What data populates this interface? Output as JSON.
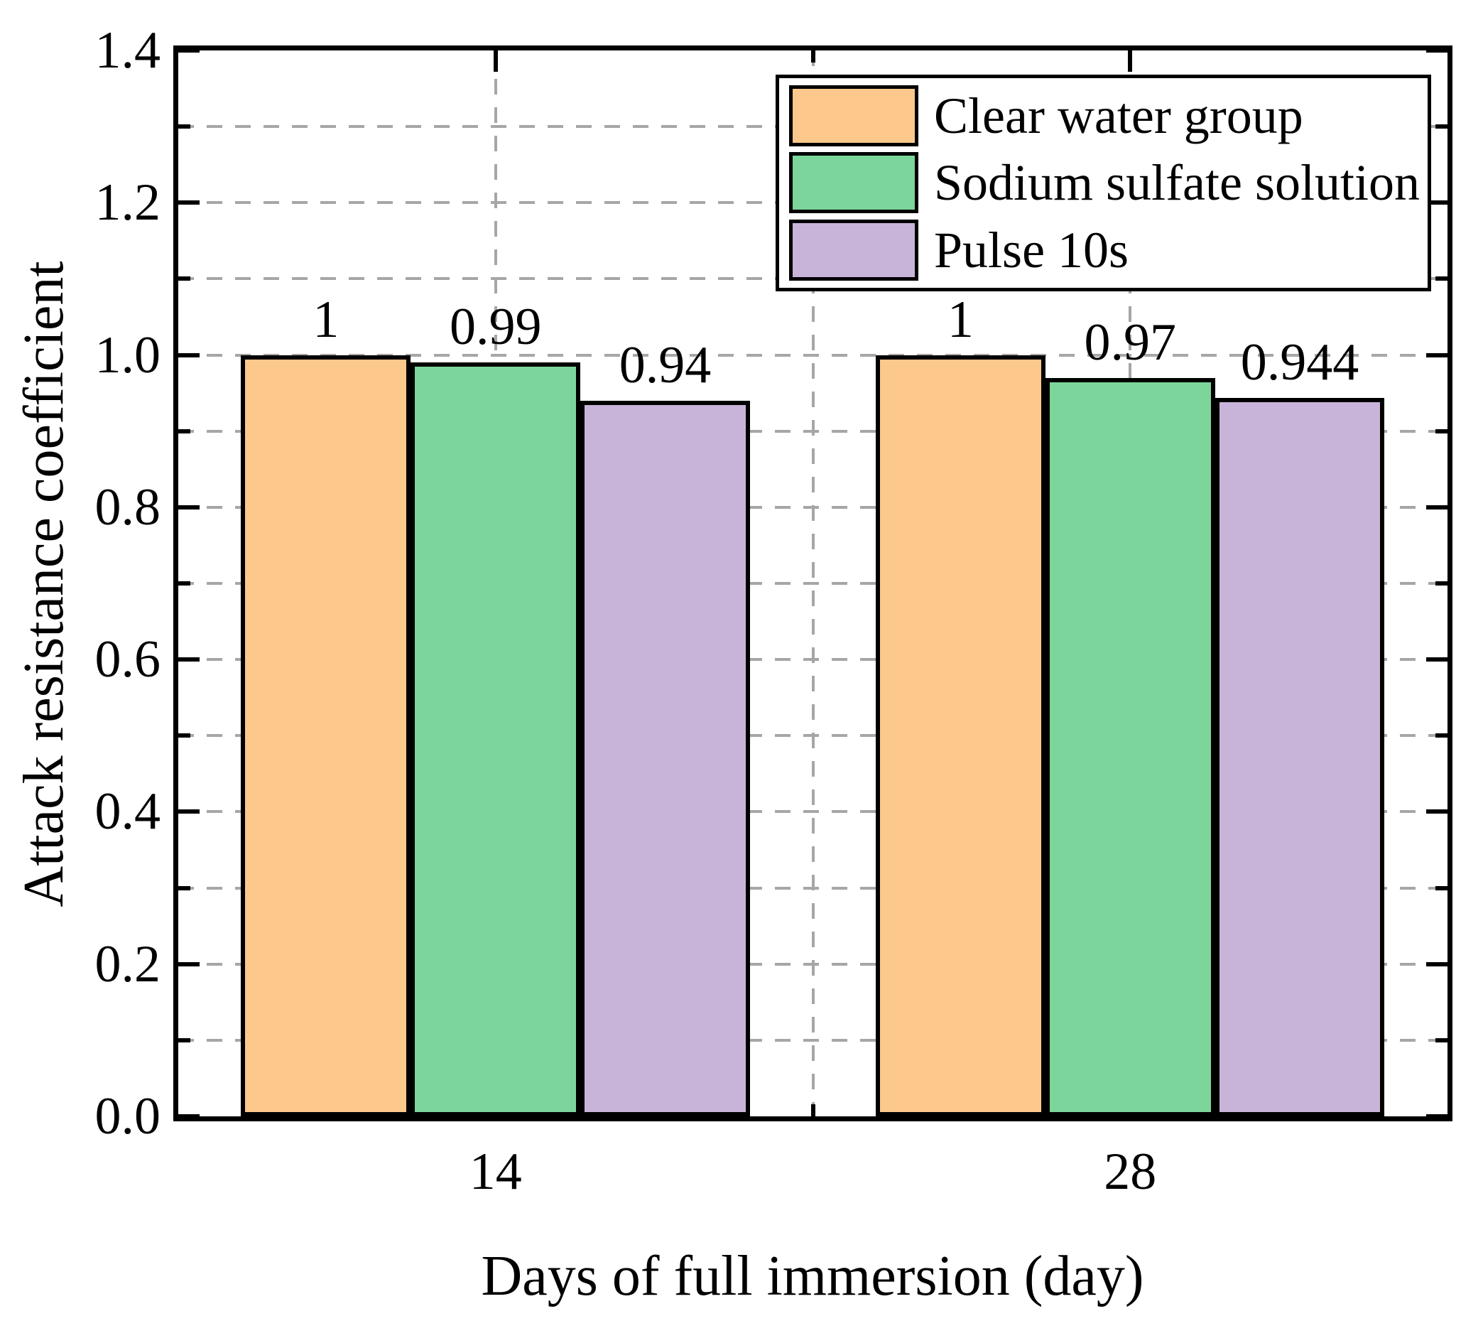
{
  "figure": {
    "background": "#ffffff"
  },
  "chart_data": {
    "type": "bar",
    "title": "",
    "xlabel": "Days of full immersion (day)",
    "ylabel": "Attack resistance coefficient",
    "categories": [
      "14",
      "28"
    ],
    "series": [
      {
        "name": "Clear water group",
        "color": "#FCC88C",
        "values": [
          1.0,
          1.0
        ],
        "labels": [
          "1",
          "1"
        ]
      },
      {
        "name": "Sodium sulfate solution",
        "color": "#7CD59A",
        "values": [
          0.99,
          0.97
        ],
        "labels": [
          "0.99",
          "0.97"
        ]
      },
      {
        "name": "Pulse 10s",
        "color": "#C9B4D9",
        "values": [
          0.94,
          0.944
        ],
        "labels": [
          "0.94",
          "0.944"
        ]
      }
    ],
    "ylim": [
      0,
      1.4
    ],
    "ytick_step": 0.2,
    "yminor_step": 0.1,
    "ytick_labels": [
      "0.0",
      "0.2",
      "0.4",
      "0.6",
      "0.8",
      "1.0",
      "1.2",
      "1.4"
    ],
    "grid": true,
    "grid_color": "#A6A6A6",
    "bar_edge_color": "#000000",
    "legend_position": "top-right"
  }
}
